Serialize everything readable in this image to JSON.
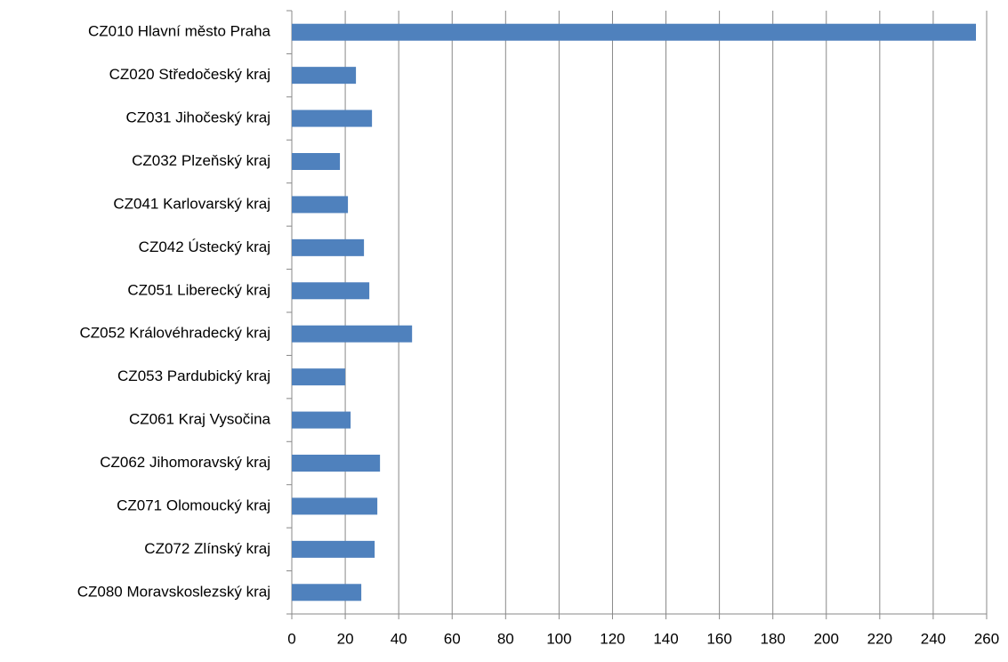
{
  "chart_data": {
    "type": "bar",
    "orientation": "horizontal",
    "categories": [
      "CZ010 Hlavní město Praha",
      "CZ020 Středočeský kraj",
      "CZ031 Jihočeský kraj",
      "CZ032 Plzeňský kraj",
      "CZ041 Karlovarský kraj",
      "CZ042 Ústecký kraj",
      "CZ051 Liberecký kraj",
      "CZ052 Královéhradecký kraj",
      "CZ053 Pardubický kraj",
      "CZ061 Kraj Vysočina",
      "CZ062 Jihomoravský kraj",
      "CZ071 Olomoucký kraj",
      "CZ072 Zlínský kraj",
      "CZ080 Moravskoslezský kraj"
    ],
    "values": [
      256,
      24,
      30,
      18,
      21,
      27,
      29,
      45,
      20,
      22,
      33,
      32,
      31,
      26
    ],
    "color": "#4f81bd",
    "xlim": [
      0,
      260
    ],
    "xticks": [
      0,
      20,
      40,
      60,
      80,
      100,
      120,
      140,
      160,
      180,
      200,
      220,
      240,
      260
    ],
    "grid": true
  }
}
